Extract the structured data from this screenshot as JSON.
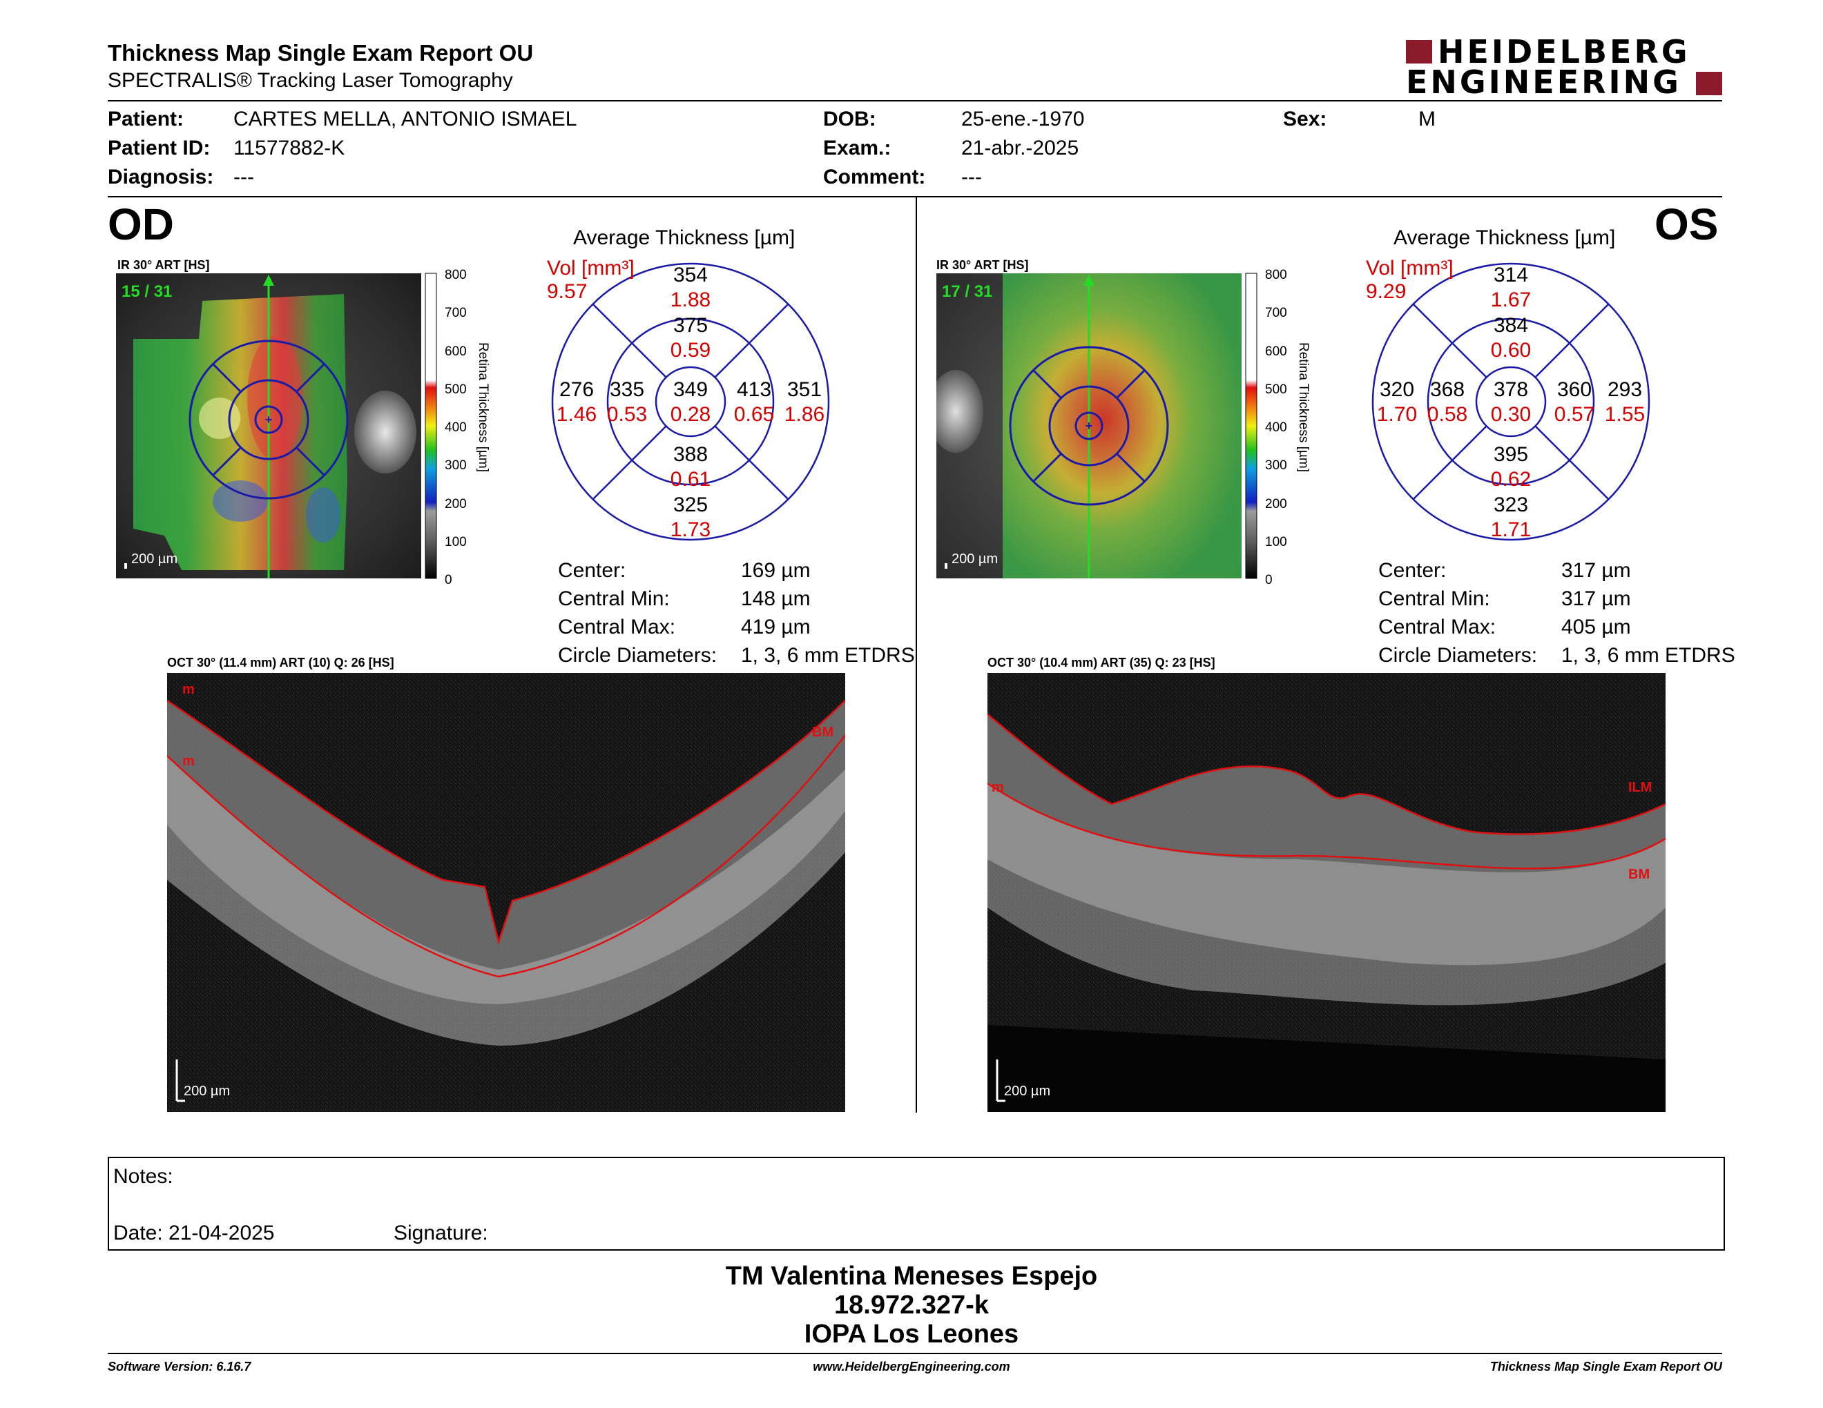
{
  "header": {
    "title": "Thickness Map Single Exam Report OU",
    "subtitle": "SPECTRALIS® Tracking Laser Tomography",
    "logo_line1": "HEIDELBERG",
    "logo_line2": "ENGINEERING",
    "logo_color": "#8b1a2b"
  },
  "patient": {
    "patient_label": "Patient:",
    "patient_value": "CARTES MELLA, ANTONIO ISMAEL",
    "id_label": "Patient ID:",
    "id_value": "11577882-K",
    "diag_label": "Diagnosis:",
    "diag_value": "---",
    "dob_label": "DOB:",
    "dob_value": "25-ene.-1970",
    "exam_label": "Exam.:",
    "exam_value": "21-abr.-2025",
    "comment_label": "Comment:",
    "comment_value": "---",
    "sex_label": "Sex:",
    "sex_value": "M"
  },
  "od": {
    "eye": "OD",
    "ir_label": "IR 30° ART [HS]",
    "frame": "15 / 31",
    "scale": "200 µm",
    "avg_title": "Average Thickness [µm]",
    "vol_label": "Vol [mm³]",
    "vol_value": "9.57",
    "grid": {
      "outer_top": {
        "t": "354",
        "v": "1.88"
      },
      "inner_top": {
        "t": "375",
        "v": "0.59"
      },
      "outer_left": {
        "t": "276",
        "v": "1.46"
      },
      "inner_left": {
        "t": "335",
        "v": "0.53"
      },
      "center": {
        "t": "349",
        "v": "0.28"
      },
      "inner_right": {
        "t": "413",
        "v": "0.65"
      },
      "outer_right": {
        "t": "351",
        "v": "1.86"
      },
      "inner_bottom": {
        "t": "388",
        "v": "0.61"
      },
      "outer_bottom": {
        "t": "325",
        "v": "1.73"
      }
    },
    "stats": [
      {
        "label": "Center:",
        "value": "169 µm"
      },
      {
        "label": "Central Min:",
        "value": "148 µm"
      },
      {
        "label": "Central Max:",
        "value": "419 µm"
      },
      {
        "label": "Circle Diameters:",
        "value": "1, 3, 6 mm ETDRS"
      }
    ],
    "oct_label": "OCT 30° (11.4 mm) ART (10) Q: 26 [HS]",
    "oct_scale": "200 µm",
    "oct_tags": [
      "m",
      "m",
      "BM"
    ]
  },
  "os": {
    "eye": "OS",
    "ir_label": "IR 30° ART [HS]",
    "frame": "17 / 31",
    "scale": "200 µm",
    "avg_title": "Average Thickness [µm]",
    "vol_label": "Vol [mm³]",
    "vol_value": "9.29",
    "grid": {
      "outer_top": {
        "t": "314",
        "v": "1.67"
      },
      "inner_top": {
        "t": "384",
        "v": "0.60"
      },
      "outer_left": {
        "t": "320",
        "v": "1.70"
      },
      "inner_left": {
        "t": "368",
        "v": "0.58"
      },
      "center": {
        "t": "378",
        "v": "0.30"
      },
      "inner_right": {
        "t": "360",
        "v": "0.57"
      },
      "outer_right": {
        "t": "293",
        "v": "1.55"
      },
      "inner_bottom": {
        "t": "395",
        "v": "0.62"
      },
      "outer_bottom": {
        "t": "323",
        "v": "1.71"
      }
    },
    "stats": [
      {
        "label": "Center:",
        "value": "317 µm"
      },
      {
        "label": "Central Min:",
        "value": "317 µm"
      },
      {
        "label": "Central Max:",
        "value": "405 µm"
      },
      {
        "label": "Circle Diameters:",
        "value": "1, 3, 6 mm ETDRS"
      }
    ],
    "oct_label": "OCT 30° (10.4 mm) ART (35) Q: 23 [HS]",
    "oct_scale": "200 µm",
    "oct_tags": [
      "m",
      "ILM",
      "BM"
    ]
  },
  "colorbar": {
    "ticks": [
      "800",
      "700",
      "600",
      "500",
      "400",
      "300",
      "200",
      "100",
      "0"
    ],
    "axis_label": "Retina Thickness [µm]"
  },
  "notes": {
    "notes_label": "Notes:",
    "date_label": "Date: 21-04-2025",
    "signature_label": "Signature:"
  },
  "signature": {
    "line1": "TM Valentina Meneses Espejo",
    "line2": "18.972.327-k",
    "line3": "IOPA Los Leones"
  },
  "footer": {
    "left": "Software Version: 6.16.7",
    "center": "www.HeidelbergEngineering.com",
    "right": "Thickness Map Single Exam Report OU"
  },
  "colors": {
    "grid_blue": "#1a1aa8",
    "value_red": "#d40000",
    "segment_red": "#e01010",
    "frame_green": "#22dd22"
  }
}
